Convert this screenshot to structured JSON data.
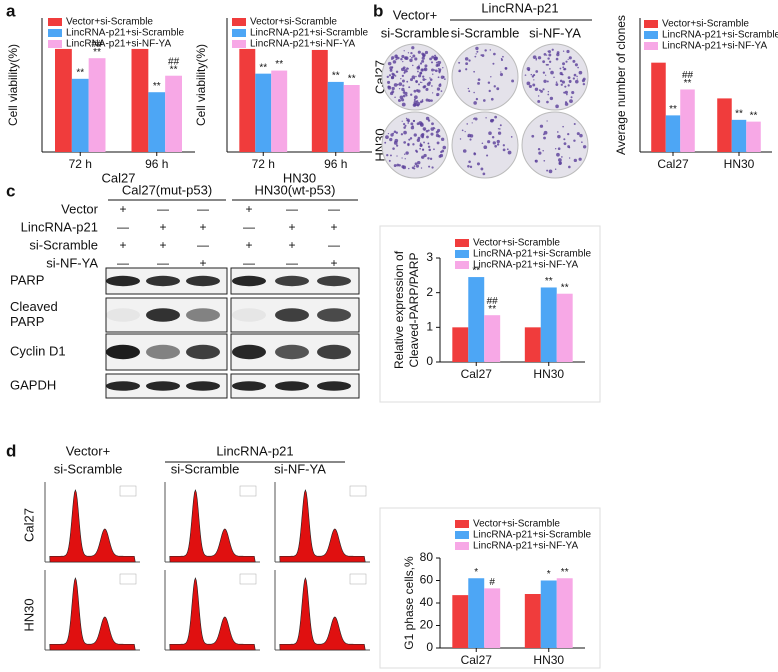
{
  "chart_data": [
    {
      "type": "bar",
      "ylabel": "Cell viability(%)",
      "xlabel": "Cal27",
      "categories": [
        "72 h",
        "96 h"
      ],
      "ylim": [
        0,
        130
      ],
      "series": [
        {
          "name": "Vector+si-Scramble",
          "color": "#f03c3c",
          "values": [
            100,
            100
          ]
        },
        {
          "name": "LincRNA-p21+si-Scramble",
          "color": "#4da6f5",
          "values": [
            71,
            58
          ],
          "marks": [
            [
              "**"
            ],
            [
              "**"
            ]
          ]
        },
        {
          "name": "LincRNA-p21+si-NF-YA",
          "color": "#f7a8e6",
          "values": [
            91,
            74
          ],
          "marks": [
            [
              "**",
              "##"
            ],
            [
              "**",
              "##"
            ]
          ]
        }
      ]
    },
    {
      "type": "bar",
      "ylabel": "Cell viability(%)",
      "xlabel": "HN30",
      "categories": [
        "72 h",
        "96 h"
      ],
      "ylim": [
        0,
        130
      ],
      "series": [
        {
          "name": "Vector+si-Scramble",
          "color": "#f03c3c",
          "values": [
            100,
            99
          ]
        },
        {
          "name": "LincRNA-p21+si-Scramble",
          "color": "#4da6f5",
          "values": [
            76,
            68
          ],
          "marks": [
            [
              "**"
            ],
            [
              "**"
            ]
          ]
        },
        {
          "name": "LincRNA-p21+si-NF-YA",
          "color": "#f7a8e6",
          "values": [
            79,
            65
          ],
          "marks": [
            [
              "**"
            ],
            [
              "**"
            ]
          ]
        }
      ]
    },
    {
      "type": "bar",
      "ylabel": "Average number of clones",
      "categories": [
        "Cal27",
        "HN30"
      ],
      "ylim": [
        0,
        300
      ],
      "series": [
        {
          "name": "Vector+si-Scramble",
          "color": "#f03c3c",
          "values": [
            200,
            120
          ]
        },
        {
          "name": "LincRNA-p21+si-Scramble",
          "color": "#4da6f5",
          "values": [
            82,
            72
          ],
          "marks": [
            [
              "**"
            ],
            [
              "**"
            ]
          ]
        },
        {
          "name": "LincRNA-p21+si-NF-YA",
          "color": "#f7a8e6",
          "values": [
            140,
            68
          ],
          "marks": [
            [
              "**",
              "##"
            ],
            [
              "**"
            ]
          ]
        }
      ]
    },
    {
      "type": "bar",
      "ylabel": [
        "Relative expression of",
        "Cleaved-PARP/PARP"
      ],
      "categories": [
        "Cal27",
        "HN30"
      ],
      "ylim": [
        0,
        3
      ],
      "yticks": [
        0,
        1,
        2,
        3
      ],
      "series": [
        {
          "name": "Vector+si-Scramble",
          "color": "#f03c3c",
          "values": [
            1,
            1
          ]
        },
        {
          "name": "LincRNA-p21+si-Scramble",
          "color": "#4da6f5",
          "values": [
            2.45,
            2.15
          ],
          "marks": [
            [
              "**"
            ],
            [
              "**"
            ]
          ]
        },
        {
          "name": "LincRNA-p21+si-NF-YA",
          "color": "#f7a8e6",
          "values": [
            1.35,
            1.97
          ],
          "marks": [
            [
              "**",
              "##"
            ],
            [
              "**"
            ]
          ]
        }
      ]
    },
    {
      "type": "bar",
      "ylabel": "G1 phase cells,%",
      "categories": [
        "Cal27",
        "HN30"
      ],
      "ylim": [
        0,
        80
      ],
      "yticks": [
        0,
        20,
        40,
        60,
        80
      ],
      "series": [
        {
          "name": "Vector+si-Scramble",
          "color": "#f03c3c",
          "values": [
            47,
            48
          ]
        },
        {
          "name": "LincRNA-p21+si-Scramble",
          "color": "#4da6f5",
          "values": [
            62,
            60
          ],
          "marks": [
            [
              "*"
            ],
            [
              "*"
            ]
          ]
        },
        {
          "name": "LincRNA-p21+si-NF-YA",
          "color": "#f7a8e6",
          "values": [
            53,
            62
          ],
          "marks": [
            [
              "#"
            ],
            [
              "**"
            ]
          ]
        }
      ]
    }
  ],
  "panel_labels": [
    "a",
    "b",
    "c",
    "d"
  ],
  "colony": {
    "headers": [
      "Vector+",
      "si-Scramble",
      "LincRNA-p21",
      "si-Scramble",
      "si-NF-YA"
    ],
    "rows": [
      "Cal27",
      "HN30"
    ]
  },
  "western": {
    "groups": [
      "Cal27(mut-p53)",
      "HN30(wt-p53)"
    ],
    "conditions": [
      {
        "label": "Vector",
        "signs": [
          "+",
          "—",
          "—",
          "+",
          "—",
          "—"
        ]
      },
      {
        "label": "LincRNA-p21",
        "signs": [
          "—",
          "+",
          "+",
          "—",
          "+",
          "+"
        ]
      },
      {
        "label": "si-Scramble",
        "signs": [
          "+",
          "+",
          "—",
          "+",
          "+",
          "—"
        ]
      },
      {
        "label": "si-NF-YA",
        "signs": [
          "—",
          "—",
          "+",
          "—",
          "—",
          "+"
        ]
      }
    ],
    "blots": [
      [
        "PARP"
      ],
      [
        "Cleaved",
        "PARP"
      ],
      [
        "Cyclin D1"
      ],
      [
        "GAPDH"
      ]
    ]
  },
  "cell_cycle": {
    "headers": [
      "Vector+",
      "si-Scramble",
      "LincRNA-p21",
      "si-Scramble",
      "si-NF-YA"
    ],
    "rows": [
      "Cal27",
      "HN30"
    ]
  }
}
